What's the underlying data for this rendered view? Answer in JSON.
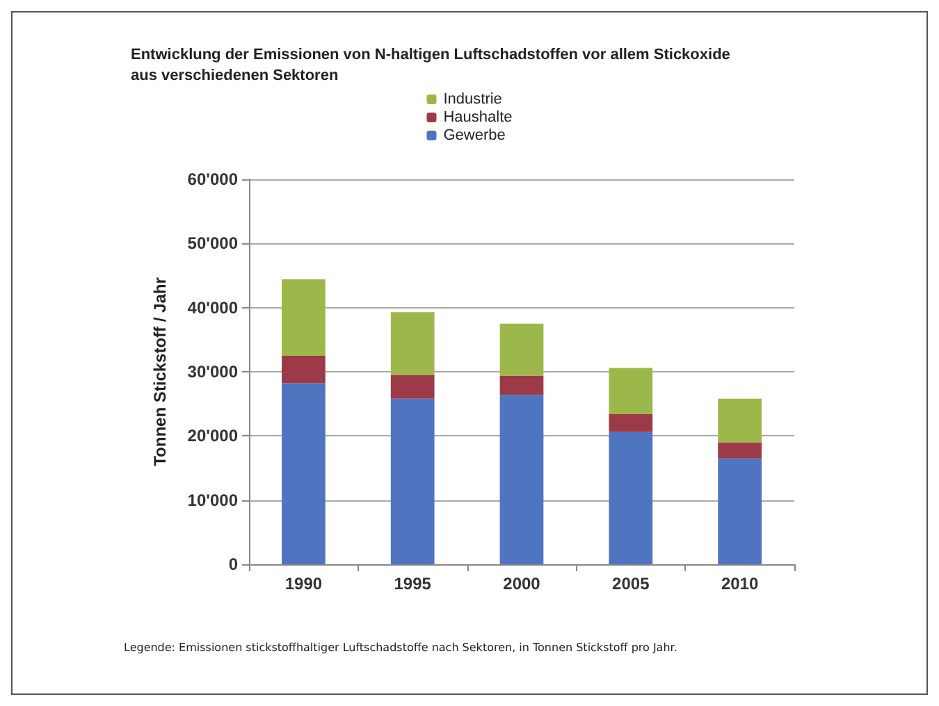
{
  "chart_data": {
    "type": "bar",
    "title": "Entwicklung der Emissionen von N-haltigen Luftschadstoffen vor allem Stickoxide\naus verschiedenen Sektoren",
    "ylabel": "Tonnen Stickstoff / Jahr",
    "categories": [
      "1990",
      "1995",
      "2000",
      "2005",
      "2010"
    ],
    "stacked": true,
    "series": [
      {
        "name": "Gewerbe",
        "color": "#4f74c0",
        "values": [
          28200,
          25800,
          26400,
          20600,
          16500
        ]
      },
      {
        "name": "Haushalte",
        "color": "#9c3a48",
        "values": [
          4300,
          3700,
          3000,
          2800,
          2500
        ]
      },
      {
        "name": "Industrie",
        "color": "#9cb84a",
        "values": [
          11900,
          9800,
          8100,
          7200,
          6800
        ]
      }
    ],
    "ylim": [
      0,
      60000
    ],
    "yticks": [
      {
        "value": 0,
        "label": "0"
      },
      {
        "value": 10000,
        "label": "10'000"
      },
      {
        "value": 20000,
        "label": "20'000"
      },
      {
        "value": 30000,
        "label": "30'000"
      },
      {
        "value": 40000,
        "label": "40'000"
      },
      {
        "value": 50000,
        "label": "50'000"
      },
      {
        "value": 60000,
        "label": "60'000"
      }
    ],
    "grid": "y",
    "legend": "top",
    "annotations": [
      "Legende: Emissionen stickstoffhaltiger Luftschadstoffe nach Sektoren, in Tonnen Stickstoff pro Jahr."
    ]
  }
}
